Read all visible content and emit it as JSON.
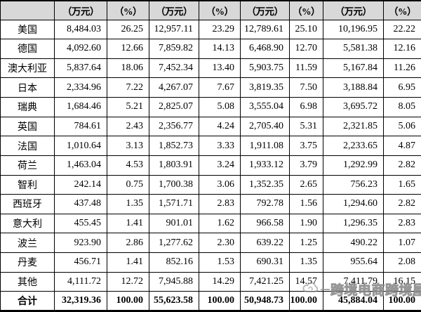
{
  "table": {
    "corner_label": "",
    "header": [
      "（万元）",
      "（%）",
      "（万元）",
      "（%）",
      "（万元）",
      "（%）",
      "（万元）",
      "（%）"
    ],
    "rows": [
      {
        "label": "美国",
        "values": [
          "8,484.03",
          "26.25",
          "12,957.11",
          "23.29",
          "12,789.61",
          "25.10",
          "10,196.95",
          "22.22"
        ]
      },
      {
        "label": "德国",
        "values": [
          "4,092.60",
          "12.66",
          "7,859.82",
          "14.13",
          "6,468.90",
          "12.70",
          "5,581.38",
          "12.16"
        ]
      },
      {
        "label": "澳大利亚",
        "values": [
          "5,837.64",
          "18.06",
          "7,452.34",
          "13.40",
          "5,903.75",
          "11.59",
          "5,167.84",
          "11.26"
        ]
      },
      {
        "label": "日本",
        "values": [
          "2,334.96",
          "7.22",
          "4,267.07",
          "7.67",
          "3,819.35",
          "7.50",
          "3,188.84",
          "6.95"
        ]
      },
      {
        "label": "瑞典",
        "values": [
          "1,684.46",
          "5.21",
          "2,825.07",
          "5.08",
          "3,555.04",
          "6.98",
          "3,695.72",
          "8.05"
        ]
      },
      {
        "label": "英国",
        "values": [
          "784.61",
          "2.43",
          "2,356.77",
          "4.24",
          "2,705.40",
          "5.31",
          "2,321.85",
          "5.06"
        ]
      },
      {
        "label": "法国",
        "values": [
          "1,010.64",
          "3.13",
          "1,852.73",
          "3.33",
          "1,911.08",
          "3.75",
          "2,233.65",
          "4.87"
        ]
      },
      {
        "label": "荷兰",
        "values": [
          "1,463.04",
          "4.53",
          "1,803.91",
          "3.24",
          "1,933.12",
          "3.79",
          "1,292.99",
          "2.82"
        ]
      },
      {
        "label": "智利",
        "values": [
          "242.14",
          "0.75",
          "1,700.38",
          "3.06",
          "1,352.35",
          "2.65",
          "756.23",
          "1.65"
        ]
      },
      {
        "label": "西班牙",
        "values": [
          "437.48",
          "1.35",
          "1,571.71",
          "2.83",
          "792.78",
          "1.56",
          "1,294.60",
          "2.82"
        ]
      },
      {
        "label": "意大利",
        "values": [
          "455.45",
          "1.41",
          "901.01",
          "1.62",
          "966.58",
          "1.90",
          "1,296.35",
          "2.83"
        ]
      },
      {
        "label": "波兰",
        "values": [
          "923.90",
          "2.86",
          "1,277.62",
          "2.30",
          "639.22",
          "1.25",
          "490.22",
          "1.07"
        ]
      },
      {
        "label": "丹麦",
        "values": [
          "456.71",
          "1.41",
          "852.16",
          "1.53",
          "690.31",
          "1.35",
          "955.64",
          "2.08"
        ]
      },
      {
        "label": "其他",
        "values": [
          "4,111.72",
          "12.72",
          "7,945.88",
          "14.29",
          "7,421.25",
          "14.57",
          "7,411.79",
          "16.15"
        ]
      },
      {
        "label": "合计",
        "values": [
          "32,319.36",
          "100.00",
          "55,623.58",
          "100.00",
          "50,948.73",
          "100.00",
          "45,884.04",
          "100.00"
        ],
        "total": true
      }
    ]
  },
  "watermark": {
    "text": "跨境电商跨境屋",
    "icon": "cloud-icon",
    "color": "#8a8a8a"
  },
  "colors": {
    "header_bg": "#d8d8d8",
    "border": "#000000",
    "text": "#000000",
    "background": "#ffffff"
  }
}
